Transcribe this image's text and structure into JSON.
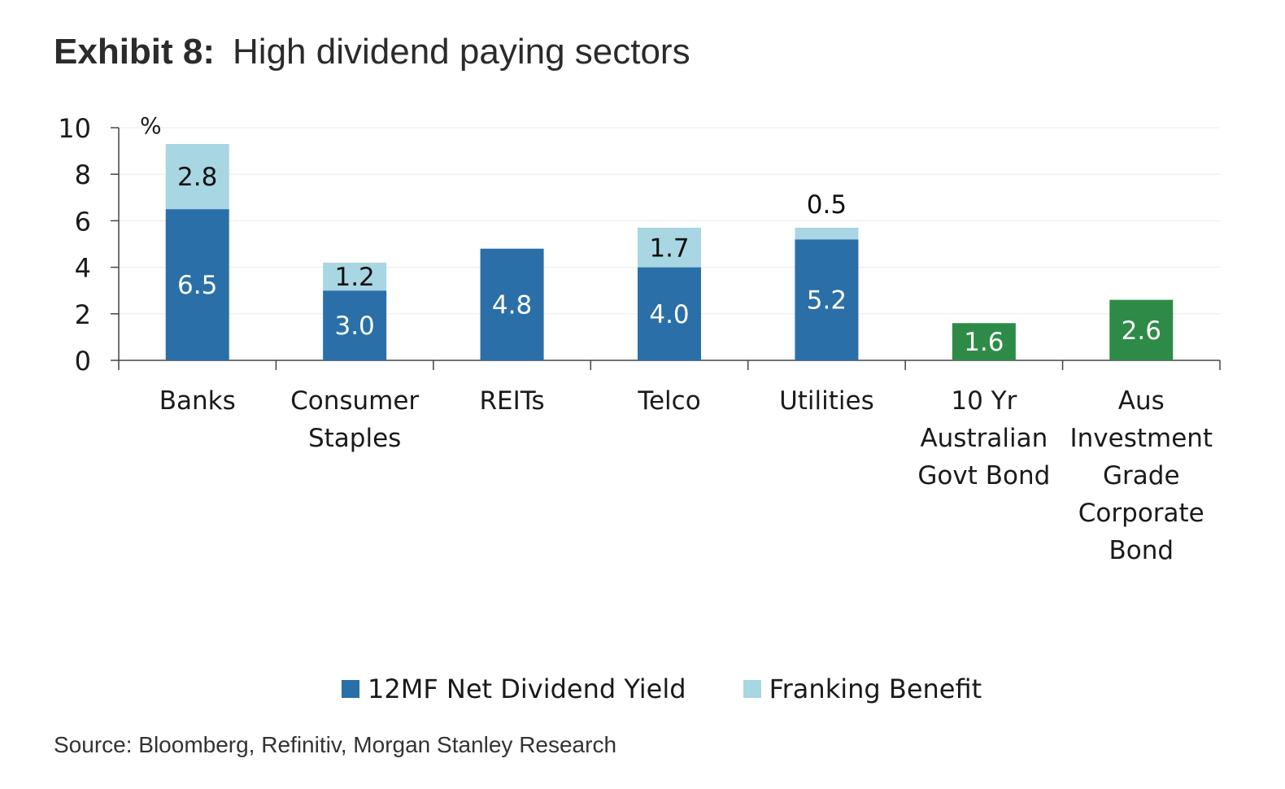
{
  "title": {
    "exhibit": "Exhibit 8:",
    "text": "High dividend paying sectors"
  },
  "source": "Source: Bloomberg, Refinitiv, Morgan Stanley Research",
  "colors": {
    "net_yield": "#2a6fa8",
    "franking": "#a8d6e3",
    "bond": "#2e8b47",
    "gridline": "#ececec",
    "axis": "#444444"
  },
  "chart_data": {
    "type": "bar",
    "stacked": true,
    "unit_label": "%",
    "ylim": [
      0,
      10
    ],
    "yticks": [
      0,
      2,
      4,
      6,
      8,
      10
    ],
    "grid": true,
    "legend_placement": "bottom",
    "categories": [
      [
        "Banks"
      ],
      [
        "Consumer",
        "Staples"
      ],
      [
        "REITs"
      ],
      [
        "Telco"
      ],
      [
        "Utilities"
      ],
      [
        "10 Yr",
        "Australian",
        "Govt Bond"
      ],
      [
        "Aus",
        "Investment",
        "Grade",
        "Corporate",
        "Bond"
      ]
    ],
    "series": [
      {
        "name": "12MF Net Dividend Yield",
        "color_key": "net_yield",
        "values": [
          6.5,
          3.0,
          4.8,
          4.0,
          5.2,
          null,
          null
        ],
        "labels": [
          "6.5",
          "3.0",
          "4.8",
          "4.0",
          "5.2",
          null,
          null
        ]
      },
      {
        "name": "Franking Benefit",
        "color_key": "franking",
        "values": [
          2.8,
          1.2,
          null,
          1.7,
          0.5,
          null,
          null
        ],
        "labels": [
          "2.8",
          "1.2",
          null,
          "1.7",
          "0.5",
          null,
          null
        ]
      },
      {
        "name": "",
        "color_key": "bond",
        "values": [
          null,
          null,
          null,
          null,
          null,
          1.6,
          2.6
        ],
        "labels": [
          null,
          null,
          null,
          null,
          null,
          "1.6",
          "2.6"
        ]
      }
    ]
  },
  "legend": [
    {
      "label": "12MF Net Dividend Yield",
      "color_key": "net_yield"
    },
    {
      "label": "Franking Benefit",
      "color_key": "franking"
    }
  ]
}
